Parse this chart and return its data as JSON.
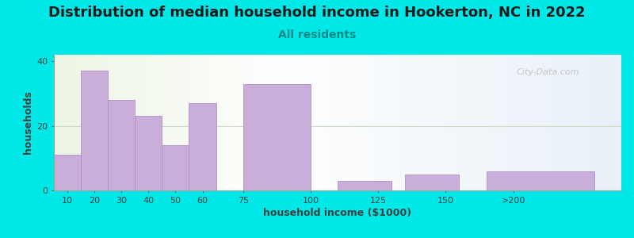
{
  "title": "Distribution of median household income in Hookerton, NC in 2022",
  "subtitle": "All residents",
  "xlabel": "household income ($1000)",
  "ylabel": "households",
  "background_color": "#00e8e8",
  "bar_color": "#c8aed8",
  "bar_edge_color": "#b090c8",
  "values": [
    11,
    37,
    28,
    23,
    14,
    27,
    0,
    33,
    3,
    5,
    6
  ],
  "bar_lefts": [
    5,
    15,
    25,
    35,
    45,
    55,
    70,
    75,
    110,
    135,
    165
  ],
  "bar_widths": [
    10,
    10,
    10,
    10,
    10,
    10,
    15,
    25,
    20,
    20,
    40
  ],
  "xlim": [
    5,
    215
  ],
  "ylim": [
    0,
    42
  ],
  "yticks": [
    0,
    20,
    40
  ],
  "xtick_positions": [
    10,
    20,
    30,
    40,
    50,
    60,
    75,
    100,
    125,
    150,
    175
  ],
  "xtick_labels": [
    "10",
    "20",
    "30",
    "40",
    "50",
    "60",
    "75",
    "100",
    "125",
    "150",
    ">200"
  ],
  "watermark_text": "City-Data.com",
  "title_fontsize": 13,
  "subtitle_fontsize": 10,
  "label_fontsize": 9,
  "tick_fontsize": 8,
  "plot_bg_colors": [
    "#edf5e4",
    "#ffffff",
    "#e8f0f8"
  ],
  "hline_y": 20,
  "hline_color": "#d0d8c8"
}
